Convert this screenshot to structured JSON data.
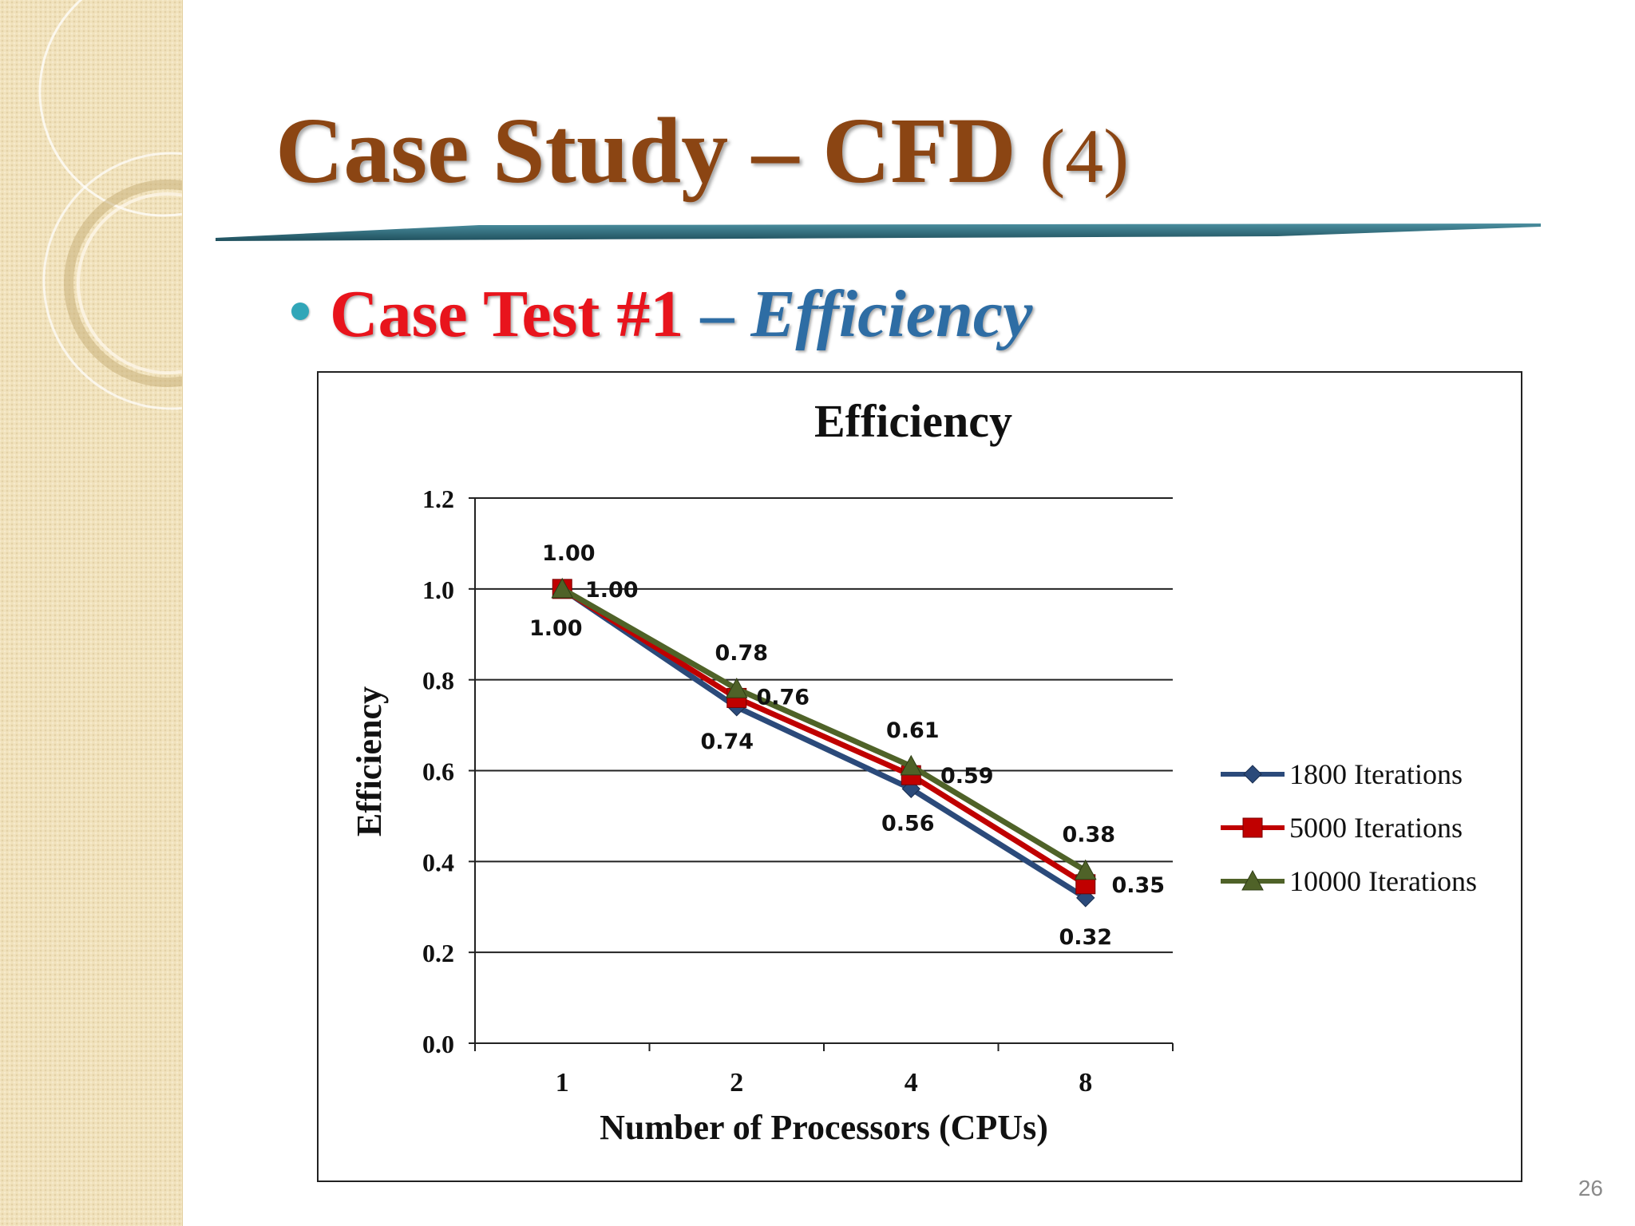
{
  "slide": {
    "title_main": "Case Study – CFD",
    "title_num": "(4)",
    "bullet_red": "Case Test #1",
    "bullet_dash": " – ",
    "bullet_blue": "Efficiency",
    "page_number": "26"
  },
  "colors": {
    "title": "#8b4513",
    "bullet_red": "#e8141c",
    "bullet_blue": "#2e6da4",
    "bullet_dot": "#31a6b8",
    "rule": "#2f6e7e"
  },
  "chart_data": {
    "type": "line",
    "title": "Efficiency",
    "xlabel": "Number of Processors (CPUs)",
    "ylabel": "Efficiency",
    "categories": [
      "1",
      "2",
      "4",
      "8"
    ],
    "ylim": [
      0,
      1.2
    ],
    "yticks": [
      "0.0",
      "0.2",
      "0.4",
      "0.6",
      "0.8",
      "1.0",
      "1.2"
    ],
    "grid": true,
    "legend_position": "right",
    "series": [
      {
        "name": "1800 Iterations",
        "values": [
          1.0,
          0.74,
          0.56,
          0.32
        ],
        "labels": [
          "1.00",
          "0.74",
          "0.56",
          "0.32"
        ],
        "color": "#2b4a7a",
        "marker": "diamond"
      },
      {
        "name": "5000 Iterations",
        "values": [
          1.0,
          0.76,
          0.59,
          0.35
        ],
        "labels": [
          "1.00",
          "0.76",
          "0.59",
          "0.35"
        ],
        "color": "#c00000",
        "marker": "square"
      },
      {
        "name": "10000 Iterations",
        "values": [
          1.0,
          0.78,
          0.61,
          0.38
        ],
        "labels": [
          "1.00",
          "0.78",
          "0.61",
          "0.38"
        ],
        "color": "#4f6228",
        "marker": "triangle"
      }
    ]
  }
}
